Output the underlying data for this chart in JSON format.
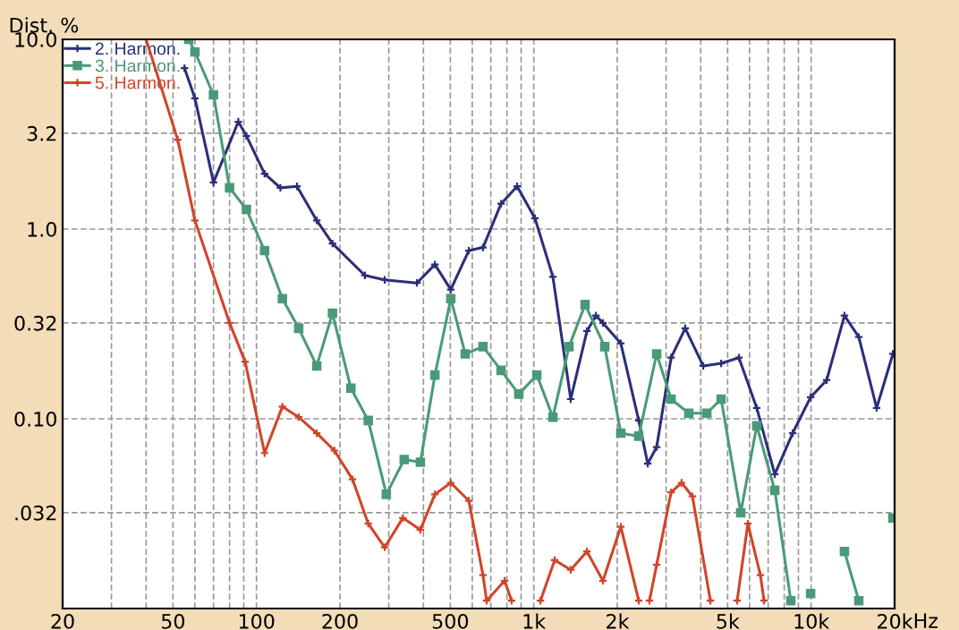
{
  "chart_data": {
    "type": "line",
    "ylabel": "Dist. %",
    "log": "xy",
    "grid": true,
    "legend": "top left",
    "line_style": "solid",
    "xlim": [
      20,
      20000
    ],
    "ylim": [
      0.01,
      10
    ],
    "xticks": [
      20,
      {
        "value": 30,
        "label": null
      },
      {
        "value": 40,
        "label": null
      },
      50,
      {
        "value": 60,
        "label": null
      },
      {
        "value": 70,
        "label": null
      },
      {
        "value": 80,
        "label": null
      },
      {
        "value": 90,
        "label": null
      },
      100,
      200,
      {
        "value": 300,
        "label": null
      },
      {
        "value": 400,
        "label": null
      },
      500,
      {
        "value": 600,
        "label": null
      },
      {
        "value": 700,
        "label": null
      },
      {
        "value": 800,
        "label": null
      },
      {
        "value": 900,
        "label": null
      },
      {
        "value": 1000,
        "label": "1k"
      },
      {
        "value": 2000,
        "label": "2k"
      },
      {
        "value": 3000,
        "label": null
      },
      {
        "value": 4000,
        "label": null
      },
      {
        "value": 5000,
        "label": "5k"
      },
      {
        "value": 6000,
        "label": null
      },
      {
        "value": 7000,
        "label": null
      },
      {
        "value": 8000,
        "label": null
      },
      {
        "value": 9000,
        "label": null
      },
      {
        "value": 10000,
        "label": "10k"
      },
      {
        "value": 20000,
        "label": "20k"
      }
    ],
    "xlabel": "Hz",
    "yticks": [
      {
        "value": 0.032,
        "label": ".032"
      },
      {
        "value": 0.1,
        "label": "0.10"
      },
      0.32,
      {
        "value": 1,
        "label": "1.0"
      },
      3.2,
      {
        "value": 10,
        "label": "10.0"
      }
    ],
    "series": [
      {
        "name": "2. Harmon.",
        "color": "#2b2f7a",
        "marker": "cross",
        "x": [
          55,
          60,
          70,
          86,
          92,
          107,
          122,
          140,
          165,
          188,
          246,
          290,
          379,
          440,
          502,
          583,
          656,
          762,
          871,
          1010,
          1172,
          1359,
          1555,
          1675,
          1776,
          2060,
          2390,
          2576,
          2774,
          3127,
          3516,
          4083,
          4737,
          5492,
          6368,
          7397,
          8580,
          9960,
          11380,
          13190,
          14860,
          17230,
          19720
        ],
        "values": [
          7.06,
          4.89,
          1.76,
          3.68,
          3.1,
          1.96,
          1.65,
          1.68,
          1.11,
          0.84,
          0.57,
          0.54,
          0.52,
          0.65,
          0.48,
          0.77,
          0.8,
          1.36,
          1.68,
          1.14,
          0.56,
          0.127,
          0.29,
          0.35,
          0.32,
          0.25,
          0.098,
          0.058,
          0.071,
          0.21,
          0.3,
          0.19,
          0.196,
          0.21,
          0.114,
          0.051,
          0.084,
          0.13,
          0.16,
          0.35,
          0.27,
          0.114,
          0.22
        ]
      },
      {
        "name": "3. Harmon.",
        "color": "#4a9a78",
        "marker": "square",
        "x": [
          57,
          60,
          70,
          80,
          92,
          107,
          124,
          142,
          165,
          188,
          219,
          253,
          294,
          341,
          390,
          440,
          502,
          566,
          656,
          762,
          883,
          1026,
          1172,
          1340,
          1531,
          1803,
          2060,
          2390,
          2774,
          3127,
          3623,
          4207,
          4737,
          5575,
          6368,
          7397,
          8450,
          9000,
          9960,
          11000,
          13190,
          14860,
          17000,
          19720
        ],
        "values": [
          10,
          8.59,
          5.1,
          1.65,
          1.27,
          0.77,
          0.43,
          0.3,
          0.19,
          0.36,
          0.145,
          0.098,
          0.04,
          0.061,
          0.059,
          0.17,
          0.43,
          0.22,
          0.24,
          0.18,
          0.135,
          0.17,
          0.102,
          0.24,
          0.4,
          0.24,
          0.084,
          0.081,
          0.22,
          0.127,
          0.107,
          0.107,
          0.127,
          0.032,
          0.092,
          0.042,
          0.011,
          null,
          0.012,
          null,
          0.02,
          0.011,
          null,
          0.03
        ]
      },
      {
        "name": "5. Harmon.",
        "color": "#d0452a",
        "marker": "cross",
        "x": [
          40,
          52,
          60,
          80,
          91,
          107,
          124,
          142,
          165,
          191,
          222,
          253,
          290,
          337,
          390,
          440,
          502,
          583,
          656,
          676,
          785,
          832,
          950,
          1057,
          1189,
          1359,
          1555,
          1776,
          2060,
          2390,
          2500,
          2613,
          2774,
          3127,
          3412,
          3733,
          4334,
          5000,
          5411,
          5916,
          6564,
          6766
        ],
        "values": [
          10,
          2.96,
          1.11,
          0.32,
          0.2,
          0.066,
          0.116,
          0.102,
          0.084,
          0.068,
          0.048,
          0.028,
          0.021,
          0.03,
          0.026,
          0.04,
          0.046,
          0.037,
          0.015,
          0.011,
          0.014,
          0.011,
          null,
          0.011,
          0.018,
          0.016,
          0.02,
          0.014,
          0.027,
          0.011,
          null,
          0.011,
          0.017,
          0.041,
          0.046,
          0.039,
          0.011,
          null,
          0.011,
          0.028,
          0.015,
          0.011
        ]
      }
    ]
  }
}
